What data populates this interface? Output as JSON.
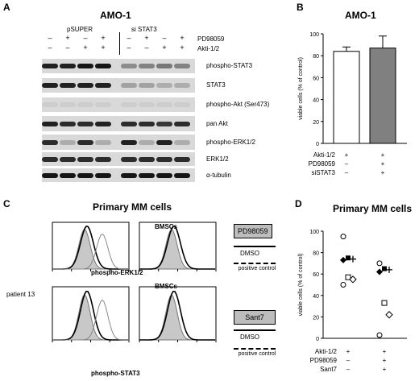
{
  "panelA": {
    "label": "A",
    "title": "AMO-1",
    "group1": "pSUPER",
    "group2": "si STAT3",
    "treatments": [
      "PD98059",
      "Akti-1/2"
    ],
    "pd_signs": [
      "–",
      "+",
      "–",
      "+",
      "–",
      "+",
      "–",
      "+"
    ],
    "akt_signs": [
      "–",
      "–",
      "+",
      "+",
      "–",
      "–",
      "+",
      "+"
    ],
    "rows": [
      "phospho-STAT3",
      "STAT3",
      "phospho-Akt (Ser473)",
      "pan Akt",
      "phospho-ERK1/2",
      "ERK1/2",
      "α-tubulin"
    ]
  },
  "panelB": {
    "label": "B",
    "title": "AMO-1",
    "chart_data": {
      "type": "bar",
      "ylabel": "viable cells (% of control)",
      "ylim": [
        0,
        100
      ],
      "yticks": [
        0,
        20,
        40,
        60,
        80,
        100
      ],
      "values": [
        84,
        87
      ],
      "errors": [
        4,
        11
      ],
      "bar_colors": [
        "#ffffff",
        "#808080"
      ],
      "conditions": [
        {
          "name": "Akti-1/2",
          "signs": [
            "+",
            "+"
          ]
        },
        {
          "name": "PD98059",
          "signs": [
            "–",
            "+"
          ]
        },
        {
          "name": "siSTAT3",
          "signs": [
            "–",
            "+"
          ]
        }
      ]
    }
  },
  "panelC": {
    "label": "C",
    "title": "Primary MM cells",
    "patient": "patient 13",
    "bmsc": "BMSCs",
    "xlabel_top": "phospho-ERK1/2",
    "xlabel_bottom": "phospho-STAT3",
    "legend_top": {
      "drug": "PD98059",
      "dmso": "DMSO",
      "pos": "positive control"
    },
    "legend_bottom": {
      "drug": "Sant7",
      "dmso": "DMSO",
      "pos": "positive control"
    }
  },
  "panelD": {
    "label": "D",
    "title": "Primary MM cells",
    "chart_data": {
      "type": "scatter",
      "ylabel": "viable cells (% of control)",
      "ylim": [
        0,
        100
      ],
      "yticks": [
        0,
        20,
        40,
        60,
        80,
        100
      ],
      "series": [
        {
          "points": [
            95,
            75,
            74,
            73,
            57,
            55,
            50
          ]
        },
        {
          "points": [
            70,
            65,
            64,
            62,
            33,
            22,
            3
          ]
        }
      ],
      "conditions": [
        {
          "name": "Akti-1/2",
          "signs": [
            "+",
            "+"
          ]
        },
        {
          "name": "PD98059",
          "signs": [
            "–",
            "+"
          ]
        },
        {
          "name": "Sant7",
          "signs": [
            "–",
            "+"
          ]
        }
      ]
    }
  }
}
